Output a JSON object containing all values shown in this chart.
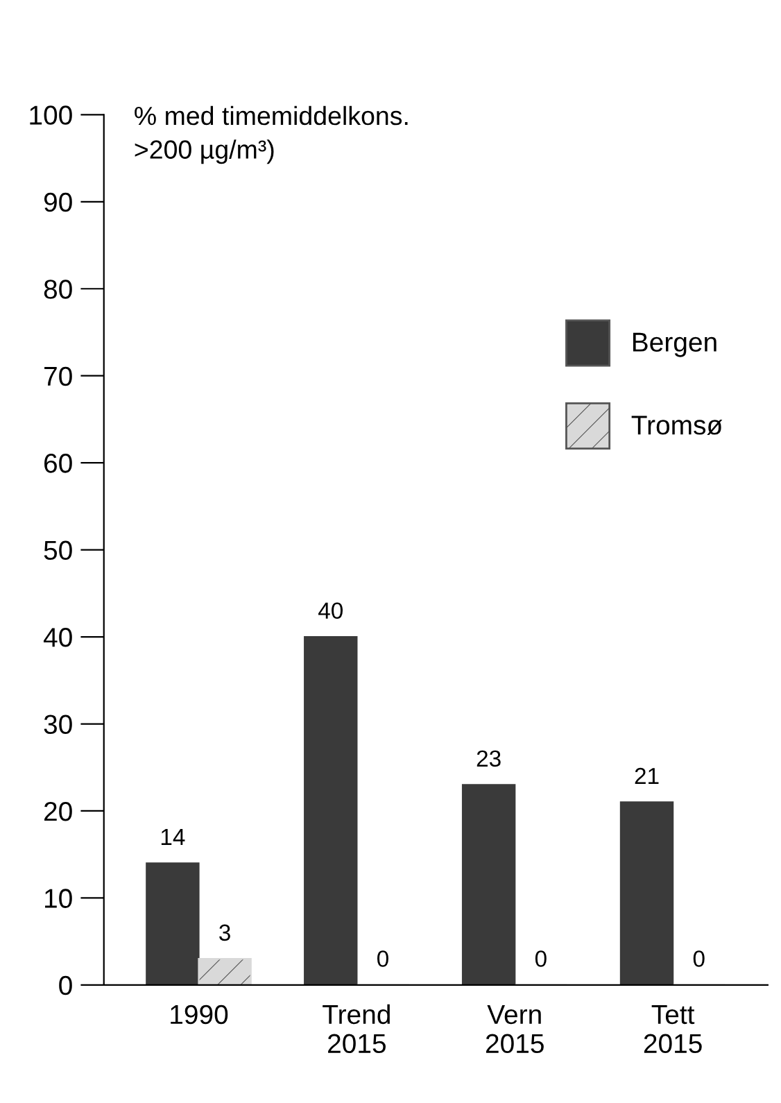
{
  "chart_data": {
    "type": "bar",
    "ylabel": "% med timemiddelkons.\n>200 µg/m³)",
    "categories": [
      "1990",
      "Trend\n2015",
      "Vern\n2015",
      "Tett\n2015"
    ],
    "series": [
      {
        "name": "Bergen",
        "color": "#3a3a3a",
        "values": [
          14,
          40,
          23,
          21
        ]
      },
      {
        "name": "Tromsø",
        "color": "#d9d9d9",
        "values": [
          3,
          0,
          0,
          0
        ]
      }
    ],
    "ylim": [
      0,
      100
    ],
    "yticks": [
      0,
      10,
      20,
      30,
      40,
      50,
      60,
      70,
      80,
      90,
      100
    ],
    "data_labels": true,
    "legend": "right",
    "grid": false
  }
}
